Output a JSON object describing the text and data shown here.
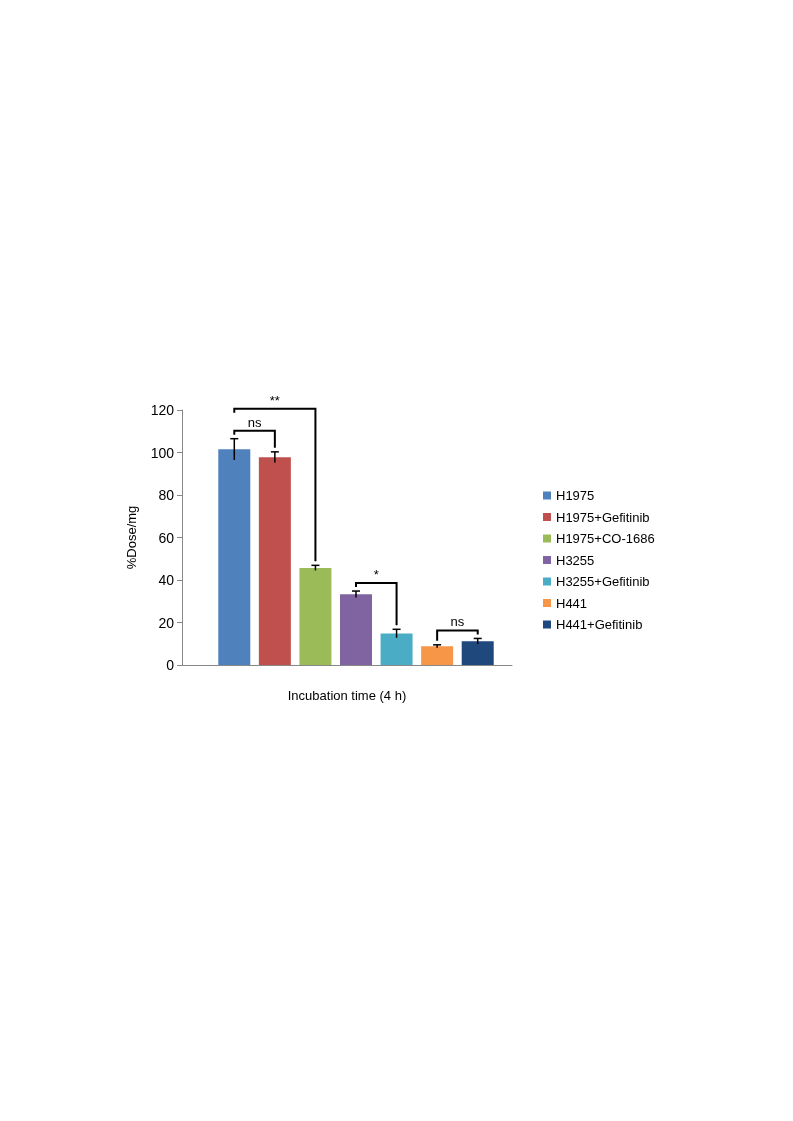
{
  "chart_data": {
    "type": "bar",
    "categories": [
      null
    ],
    "xlabel": "Incubation time (4 h)",
    "ylabel": "%Dose/mg",
    "ylim": [
      0,
      120
    ],
    "yticks": [
      0,
      20,
      40,
      60,
      80,
      100,
      120
    ],
    "grid": false,
    "legend": "right",
    "series": [
      {
        "name": "H1975",
        "color": "#4f81bd",
        "values": [
          101.5
        ],
        "errors": [
          5
        ]
      },
      {
        "name": "H1975+Gefitinib",
        "color": "#c0504d",
        "values": [
          97.8
        ],
        "errors": [
          2.5
        ]
      },
      {
        "name": "H1975+CO-1686",
        "color": "#9bbb59",
        "values": [
          45.7
        ],
        "errors": [
          1.2
        ]
      },
      {
        "name": "H3255",
        "color": "#8064a2",
        "values": [
          33.3
        ],
        "errors": [
          1.5
        ]
      },
      {
        "name": "H3255+Gefitinib",
        "color": "#4bacc6",
        "values": [
          14.8
        ],
        "errors": [
          2
        ]
      },
      {
        "name": "H441",
        "color": "#f79646",
        "values": [
          8.8
        ],
        "errors": [
          0.7
        ]
      },
      {
        "name": "H441+Gefitinib",
        "color": "#1f497d",
        "values": [
          11.2
        ],
        "errors": [
          1.3
        ]
      }
    ],
    "annotations": [
      "ns",
      "**",
      "*",
      "ns"
    ]
  }
}
